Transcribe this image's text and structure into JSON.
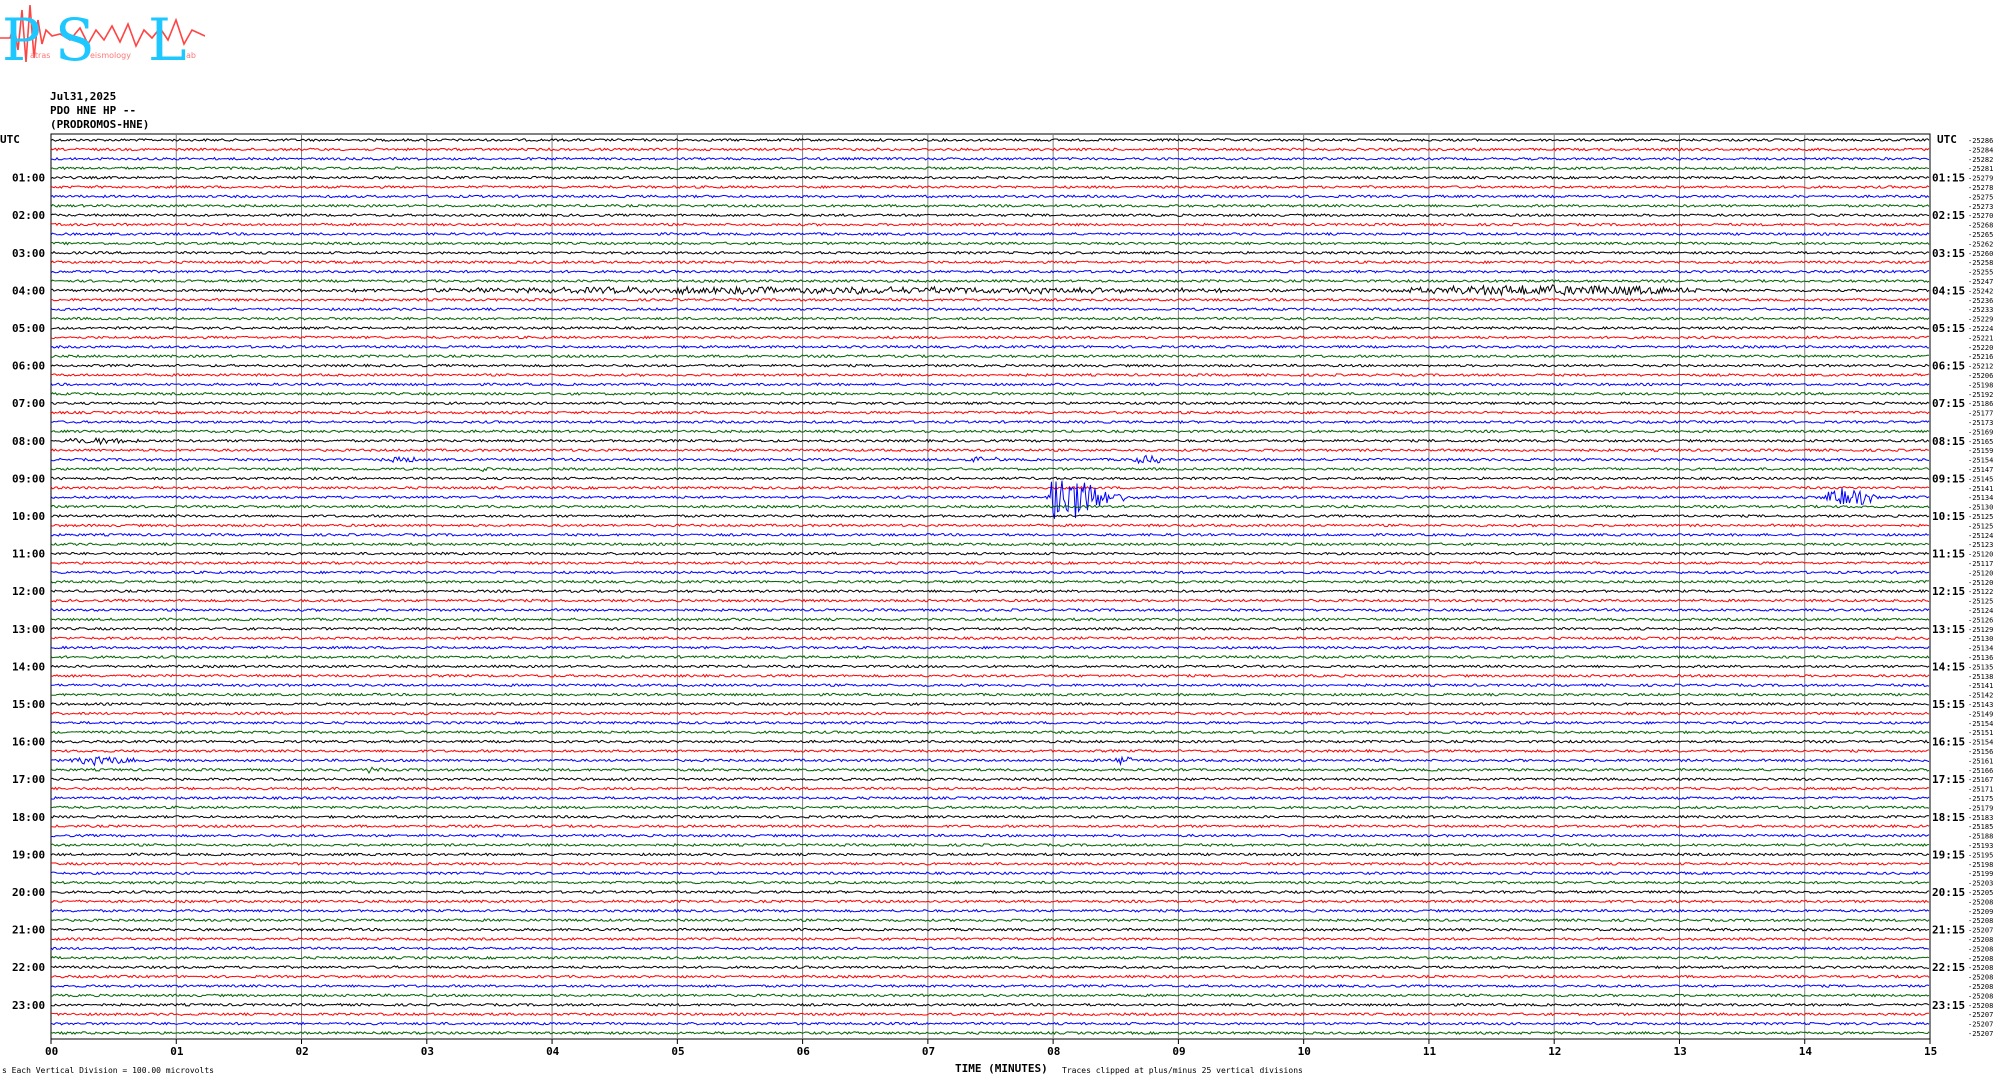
{
  "logo": {
    "letters": [
      "P",
      "S",
      "L"
    ],
    "small_words": [
      "atras",
      "eismology",
      "ab"
    ]
  },
  "header": {
    "date": "Jul31,2025",
    "station": "PDO HNE HP --",
    "location": "(PRODROMOS-HNE)"
  },
  "footer": {
    "scale_prefix": "s",
    "scale": "Each Vertical Division =  100.00 microvolts",
    "clip_note": "Traces clipped at plus/minus 25 vertical divisions"
  },
  "colors": {
    "cycle": [
      "#000000",
      "#ff0000",
      "#0000ff",
      "#006400"
    ],
    "grid": "#808080"
  },
  "chart_data": {
    "type": "helicorder",
    "title": "",
    "xlabel": "TIME (MINUTES)",
    "xlim": [
      0,
      15
    ],
    "x_ticks": [
      "00",
      "01",
      "02",
      "03",
      "04",
      "05",
      "06",
      "07",
      "08",
      "09",
      "10",
      "11",
      "12",
      "13",
      "14",
      "15"
    ],
    "left_axis_label": "UTC",
    "right_axis_label": "UTC",
    "line_count": 96,
    "minutes_per_line": 15,
    "left_hour_labels": [
      "01:00",
      "02:00",
      "03:00",
      "04:00",
      "05:00",
      "06:00",
      "07:00",
      "08:00",
      "09:00",
      "10:00",
      "11:00",
      "12:00",
      "13:00",
      "14:00",
      "15:00",
      "16:00",
      "17:00",
      "18:00",
      "19:00",
      "20:00",
      "21:00",
      "22:00",
      "23:00"
    ],
    "right_hour_labels": [
      "01:15",
      "02:15",
      "03:15",
      "04:15",
      "05:15",
      "06:15",
      "07:15",
      "08:15",
      "09:15",
      "10:15",
      "11:15",
      "12:15",
      "13:15",
      "14:15",
      "15:15",
      "16:15",
      "17:15",
      "18:15",
      "19:15",
      "20:15",
      "21:15",
      "22:15",
      "23:15"
    ],
    "right_offsets": [
      "-25286",
      "-25284",
      "-25282",
      "-25281",
      "-25279",
      "-25278",
      "-25275",
      "-25273",
      "-25270",
      "-25268",
      "-25265",
      "-25262",
      "-25260",
      "-25258",
      "-25255",
      "-25247",
      "-25242",
      "-25236",
      "-25233",
      "-25229",
      "-25224",
      "-25221",
      "-25220",
      "-25216",
      "-25212",
      "-25206",
      "-25198",
      "-25192",
      "-25186",
      "-25177",
      "-25173",
      "-25169",
      "-25165",
      "-25159",
      "-25154",
      "-25147",
      "-25145",
      "-25141",
      "-25134",
      "-25130",
      "-25125",
      "-25125",
      "-25124",
      "-25123",
      "-25120",
      "-25117",
      "-25120",
      "-25120",
      "-25122",
      "-25125",
      "-25124",
      "-25126",
      "-25129",
      "-25130",
      "-25134",
      "-25136",
      "-25135",
      "-25138",
      "-25141",
      "-25142",
      "-25143",
      "-25149",
      "-25154",
      "-25151",
      "-25154",
      "-25156",
      "-25161",
      "-25166",
      "-25167",
      "-25171",
      "-25175",
      "-25179",
      "-25183",
      "-25185",
      "-25188",
      "-25193",
      "-25195",
      "-25198",
      "-25199",
      "-25203",
      "-25205",
      "-25208",
      "-25209",
      "-25208",
      "-25207",
      "-25208",
      "-25208",
      "-25208",
      "-25208",
      "-25208",
      "-25208",
      "-25208",
      "-25208",
      "-25207",
      "-25207",
      "-25207"
    ],
    "noise_level": 1.2,
    "events": [
      {
        "line": 16,
        "t_start": 1.5,
        "t_end": 10.5,
        "amp": 3,
        "note": "continuous noise burst"
      },
      {
        "line": 16,
        "t_start": 10.5,
        "t_end": 13.5,
        "amp": 5,
        "note": "stronger noise burst"
      },
      {
        "line": 32,
        "t_start": 0.0,
        "t_end": 0.8,
        "amp": 3
      },
      {
        "line": 34,
        "t_start": 2.6,
        "t_end": 3.0,
        "amp": 3
      },
      {
        "line": 34,
        "t_start": 7.2,
        "t_end": 7.6,
        "amp": 3
      },
      {
        "line": 34,
        "t_start": 8.6,
        "t_end": 8.9,
        "amp": 4
      },
      {
        "line": 35,
        "t_start": 3.4,
        "t_end": 3.5,
        "amp": 2
      },
      {
        "line": 38,
        "t_start": 7.95,
        "t_end": 8.9,
        "amp": 40,
        "note": "main earthquake"
      },
      {
        "line": 38,
        "t_start": 14.1,
        "t_end": 14.6,
        "amp": 9,
        "note": "secondary event"
      },
      {
        "line": 66,
        "t_start": 0.1,
        "t_end": 0.75,
        "amp": 4
      },
      {
        "line": 66,
        "t_start": 8.4,
        "t_end": 8.7,
        "amp": 4
      },
      {
        "line": 67,
        "t_start": 2.5,
        "t_end": 2.65,
        "amp": 3
      }
    ]
  }
}
